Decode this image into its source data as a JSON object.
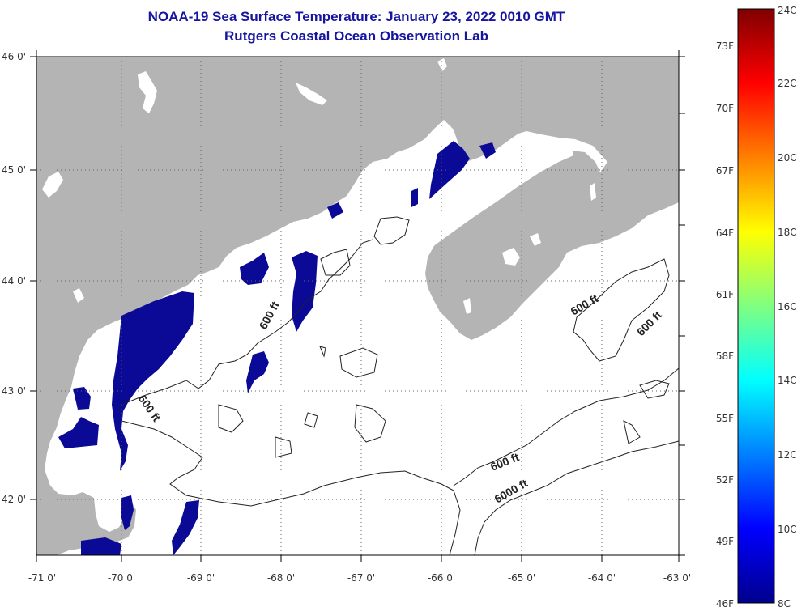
{
  "title": {
    "line1": "NOAA-19 Sea Surface Temperature:  January 23, 2022 0010 GMT",
    "line2": "Rutgers Coastal Ocean Observation Lab"
  },
  "colors": {
    "land": "#b4b4b4",
    "water": "#ffffff",
    "sst_cold": "#0a0a96",
    "contour": "#222222",
    "title": "#1515a0"
  },
  "map": {
    "lon_labels": [
      "-71 0'",
      "-70 0'",
      "-69 0'",
      "-68 0'",
      "-67 0'",
      "-66 0'",
      "-65 0'",
      "-64 0'",
      "-63 0'"
    ],
    "lat_labels": [
      "46 0'",
      "45 0'",
      "44 0'",
      "43 0'",
      "42 0'"
    ],
    "contour_labels": [
      "600 ft",
      "600 ft",
      "600 ft",
      "600 ft",
      "600 ft",
      "6000 ft"
    ]
  },
  "colorbar": {
    "celsius_labels": [
      "24C",
      "22C",
      "20C",
      "18C",
      "16C",
      "14C",
      "12C",
      "10C",
      "8C"
    ],
    "fahrenheit_labels": [
      "73F",
      "70F",
      "67F",
      "64F",
      "61F",
      "58F",
      "55F",
      "52F",
      "49F",
      "46F"
    ]
  }
}
